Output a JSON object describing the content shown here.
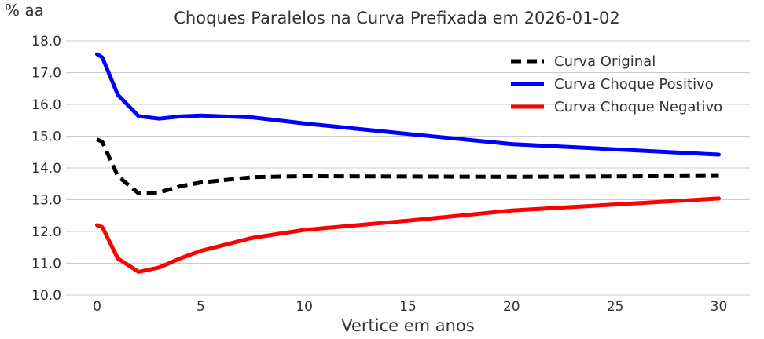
{
  "chart_data": {
    "type": "line",
    "title": "Choques Paralelos na Curva Prefixada em 2026-01-02",
    "xlabel": "Vertice em anos",
    "ylabel": "% aa",
    "xlim": [
      -1.5,
      31.5
    ],
    "ylim": [
      10.0,
      18.0
    ],
    "x_ticks": [
      0,
      5,
      10,
      15,
      20,
      25,
      30
    ],
    "x_tick_labels": [
      "0",
      "5",
      "10",
      "15",
      "20",
      "25",
      "30"
    ],
    "y_ticks": [
      10,
      11,
      12,
      13,
      14,
      15,
      16,
      17,
      18
    ],
    "y_tick_labels": [
      "10.0",
      "11.0",
      "12.0",
      "13.0",
      "14.0",
      "15.0",
      "16.0",
      "17.0",
      "18.0"
    ],
    "grid": "horizontal",
    "legend_position": "top-right",
    "series": [
      {
        "name": "Curva Original",
        "color": "#000000",
        "style": "dashed",
        "x": [
          0,
          0.25,
          1,
          2,
          3,
          4,
          5,
          7.5,
          10,
          15,
          20,
          30
        ],
        "y": [
          14.9,
          14.82,
          13.74,
          13.2,
          13.23,
          13.42,
          13.54,
          13.71,
          13.74,
          13.73,
          13.72,
          13.75
        ]
      },
      {
        "name": "Curva Choque Positivo",
        "color": "#0000ff",
        "style": "solid",
        "x": [
          0,
          0.25,
          1,
          2,
          3,
          4,
          5,
          7.5,
          10,
          15,
          20,
          30
        ],
        "y": [
          17.58,
          17.48,
          16.3,
          15.63,
          15.55,
          15.62,
          15.65,
          15.59,
          15.4,
          15.07,
          14.75,
          14.42
        ]
      },
      {
        "name": "Curva Choque Negativo",
        "color": "#ff0000",
        "style": "solid",
        "x": [
          0,
          0.25,
          1,
          2,
          3,
          4,
          5,
          7.5,
          10,
          15,
          20,
          30
        ],
        "y": [
          12.2,
          12.14,
          11.15,
          10.73,
          10.87,
          11.15,
          11.39,
          11.8,
          12.05,
          12.34,
          12.66,
          13.04
        ]
      }
    ]
  }
}
